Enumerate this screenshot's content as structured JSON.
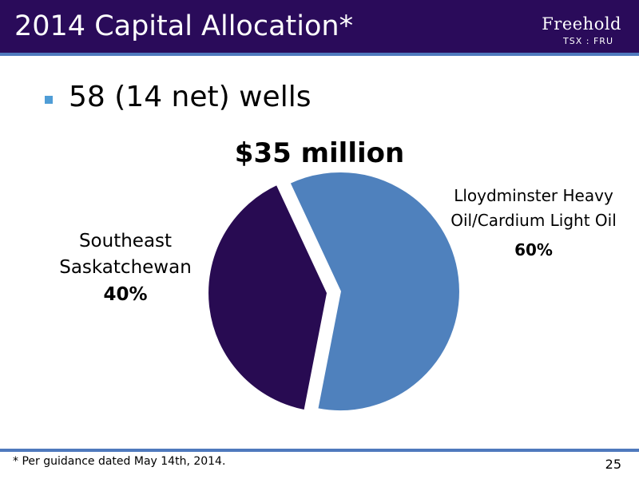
{
  "header": {
    "title": "2014 Capital Allocation*",
    "logo_name": "Freehold",
    "logo_ticker": "TSX : FRU"
  },
  "bullet": "58 (14 net) wells",
  "chart_data": {
    "type": "pie",
    "title": "$35 million",
    "slices": [
      {
        "label": "Lloydminster Heavy Oil/Cardium Light Oil",
        "label_lines": [
          "Lloydminster Heavy",
          "Oil/Cardium Light Oil"
        ],
        "value": 60,
        "value_label": "60%",
        "color": "#4f81bd"
      },
      {
        "label": "Southeast Saskatchewan",
        "label_lines": [
          "Southeast",
          "Saskatchewan"
        ],
        "value": 40,
        "value_label": "40%",
        "color": "#280b52"
      }
    ]
  },
  "footer": {
    "note": "* Per guidance dated May 14th, 2014.",
    "page": "25"
  },
  "colors": {
    "header_bg": "#2a0b5a",
    "accent_rule": "#4f79bd",
    "bullet": "#4f9dd6"
  }
}
